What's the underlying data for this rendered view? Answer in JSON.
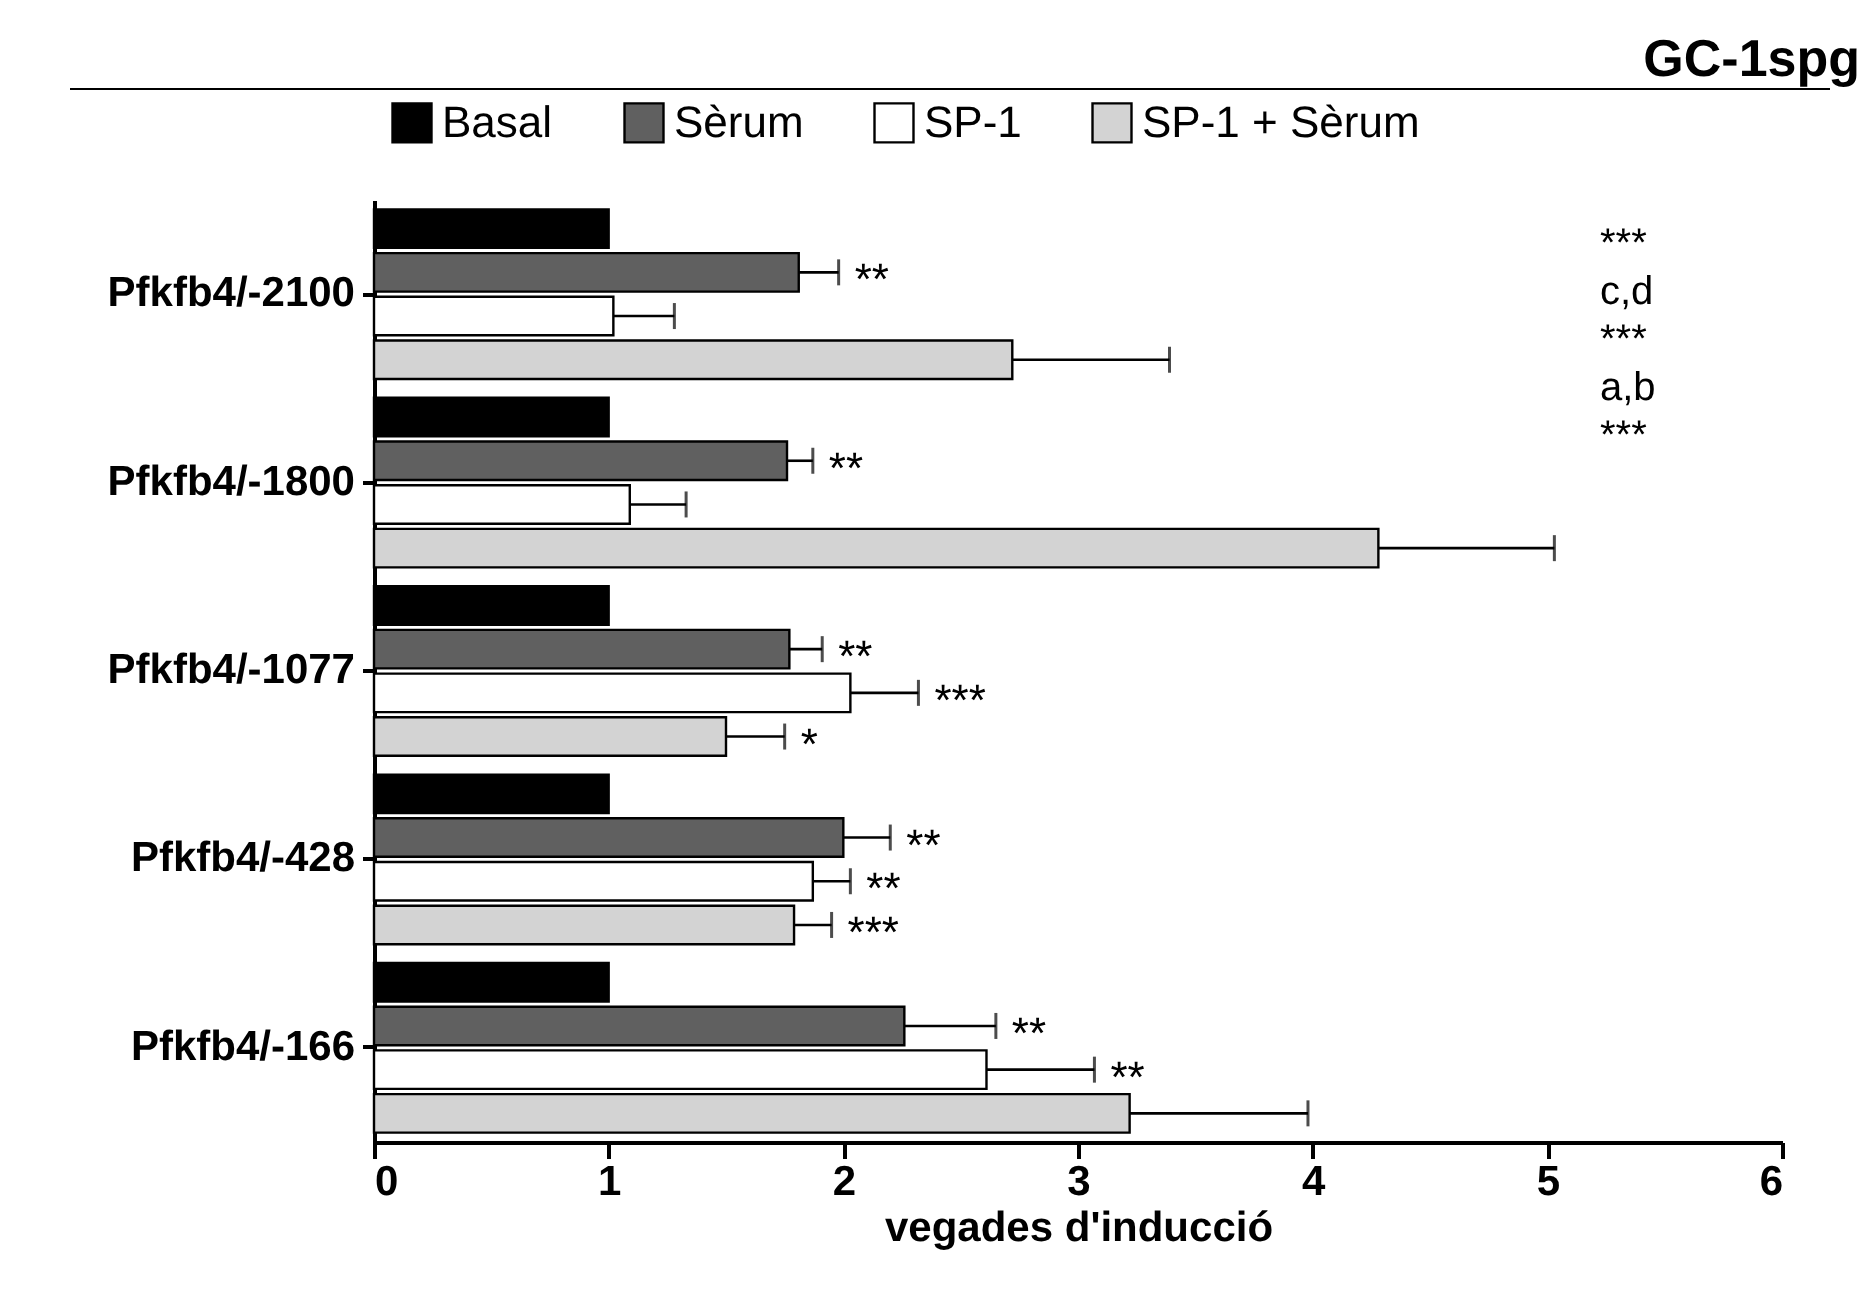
{
  "chart_data": {
    "type": "bar",
    "orientation": "horizontal",
    "title": "GC-1spg",
    "xlabel": "vegades d'inducció",
    "categories": [
      "Pfkfb4/-2100",
      "Pfkfb4/-1800",
      "Pfkfb4/-1077",
      "Pfkfb4/-428",
      "Pfkfb4/-166"
    ],
    "series": [
      {
        "name": "Basal",
        "color": "#000000",
        "values": [
          1.0,
          1.0,
          1.0,
          1.0,
          1.0
        ]
      },
      {
        "name": "Sèrum",
        "color": "#606060",
        "values": [
          1.81,
          1.76,
          1.77,
          2.0,
          2.26
        ],
        "errors": [
          [
            1.81,
            1.98
          ],
          [
            1.76,
            1.87
          ],
          [
            1.77,
            1.91
          ],
          [
            2.0,
            2.2
          ],
          [
            2.26,
            2.65
          ]
        ]
      },
      {
        "name": "SP-1",
        "color": "#ffffff",
        "values": [
          1.02,
          1.09,
          2.03,
          1.87,
          2.61
        ],
        "errors": [
          [
            1.02,
            1.28
          ],
          [
            1.09,
            1.33
          ],
          [
            2.03,
            2.32
          ],
          [
            1.87,
            2.03
          ],
          [
            2.61,
            3.07
          ]
        ]
      },
      {
        "name": "SP-1 + Sèrum",
        "color": "#d3d3d3",
        "values": [
          2.72,
          4.28,
          1.5,
          1.79,
          3.22
        ],
        "errors": [
          [
            2.72,
            3.39
          ],
          [
            4.28,
            5.03
          ],
          [
            1.5,
            1.75
          ],
          [
            1.79,
            1.95
          ],
          [
            3.22,
            3.98
          ]
        ]
      }
    ],
    "xlim": [
      0,
      6
    ],
    "xticks": [
      0,
      1,
      2,
      3,
      4,
      5,
      6
    ],
    "legend": "top",
    "grid": false,
    "annotations": [
      {
        "text": "**",
        "x": 1.81,
        "y": "Pfkfb4/-2100"
      },
      "***",
      "c,d",
      {
        "text": "**",
        "x": 1.76,
        "y": "Pfkfb4/-1800"
      },
      "***",
      "a,b",
      {
        "text": "**",
        "x": 1.77,
        "y": "Pfkfb4/-1077"
      },
      {
        "text": "***",
        "x": 2.03,
        "y": "Pfkfb4/-1077"
      },
      {
        "text": "*",
        "x": 1.5,
        "y": "Pfkfb4/-1077"
      },
      {
        "text": "**",
        "x": 2.0,
        "y": "Pfkfb4/-428"
      },
      {
        "text": "**",
        "x": 1.87,
        "y": "Pfkfb4/-428"
      },
      {
        "text": "***",
        "x": 1.79,
        "y": "Pfkfb4/-428"
      },
      {
        "text": "**",
        "x": 2.26,
        "y": "Pfkfb4/-166"
      },
      {
        "text": "**",
        "x": 2.61,
        "y": "Pfkfb4/-166"
      },
      "***"
    ]
  }
}
